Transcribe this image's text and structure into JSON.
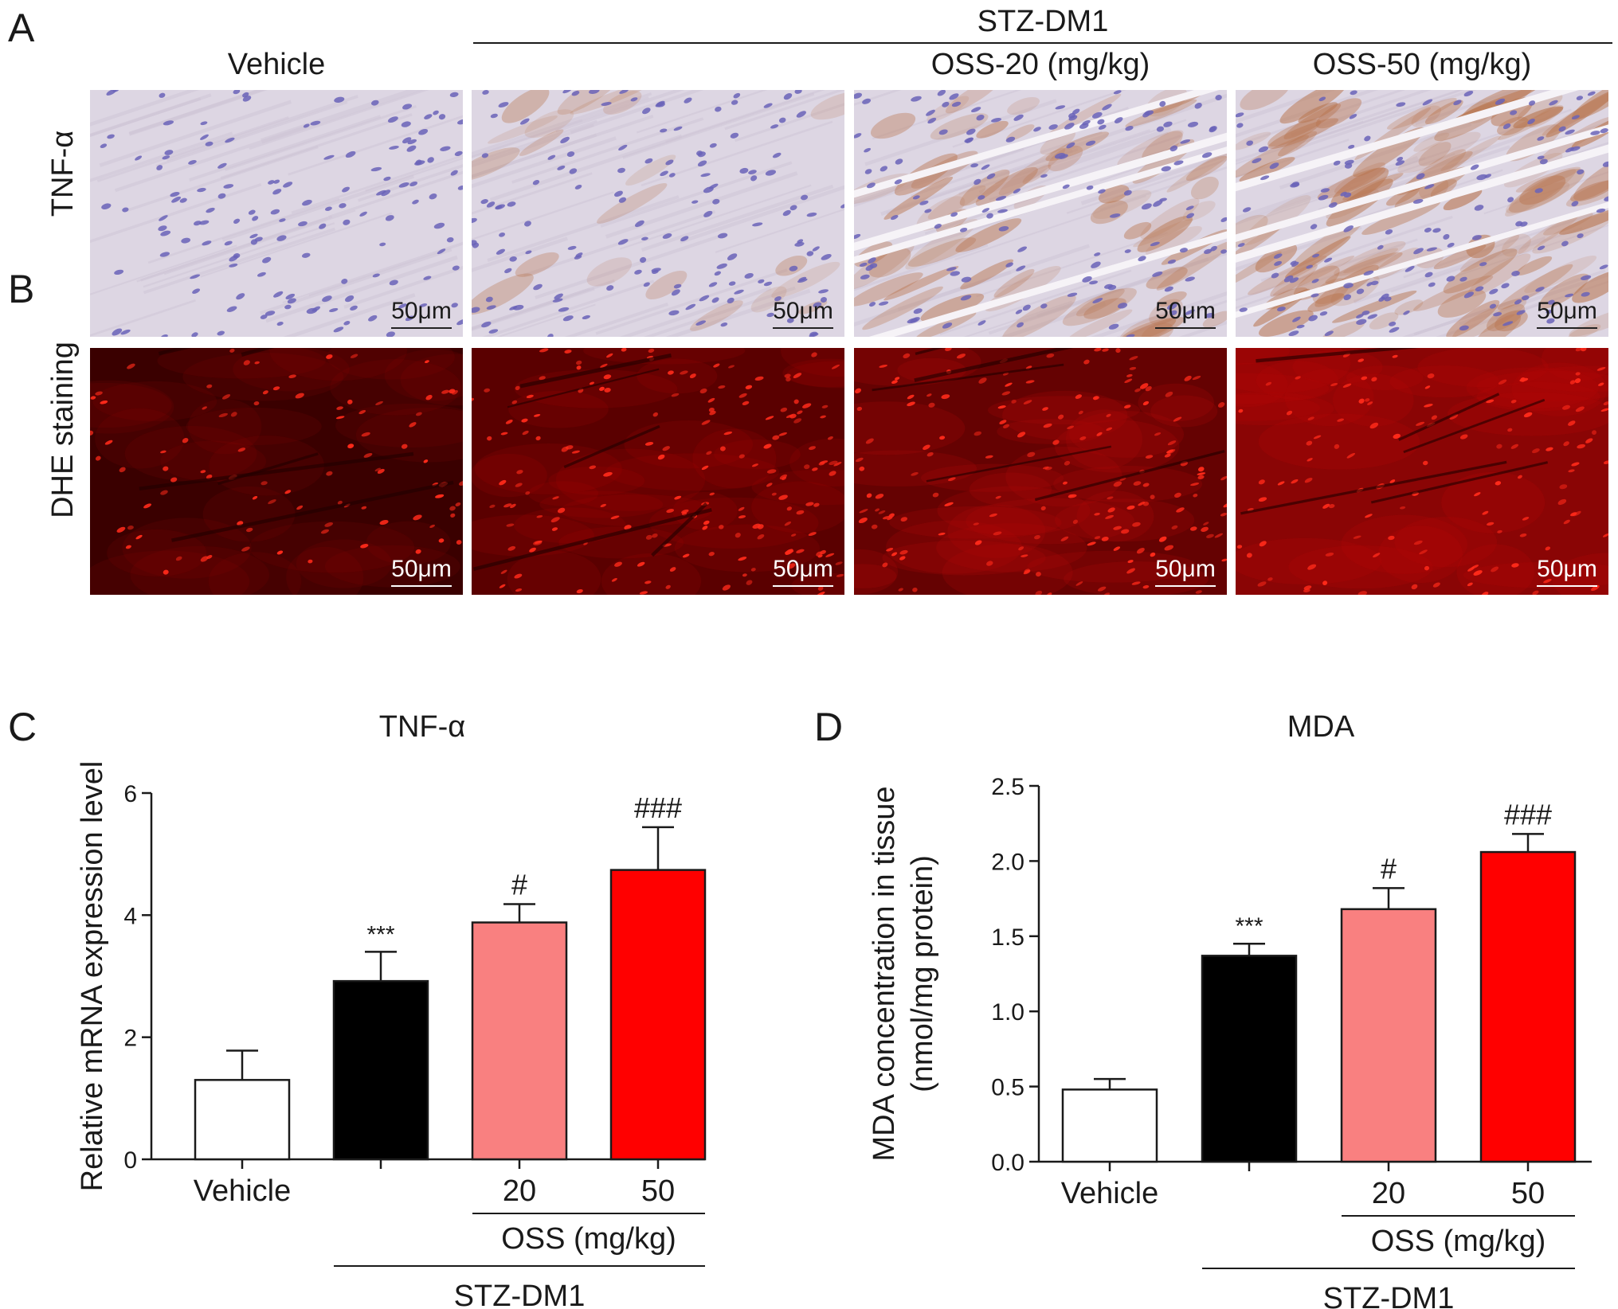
{
  "figure": {
    "panel_a_letter": "A",
    "panel_b_letter": "B",
    "panel_c_letter": "C",
    "panel_d_letter": "D",
    "group_header": "STZ-DM1",
    "columns": [
      "Vehicle",
      "OSS-20 (mg/kg)",
      "OSS-50 (mg/kg)"
    ],
    "rows": [
      "TNF-α",
      "DHE staining"
    ],
    "scale_bar_label": "50μm"
  },
  "colors": {
    "vehicle": "#ffffff",
    "stz": "#000000",
    "oss20": "#f98080",
    "oss50": "#ff0000",
    "ihc_bg": "#ddd6e3",
    "ihc_brown": "#b8744d",
    "nuclei": "#6a63b8",
    "dhe_bg": "#5a0000",
    "dhe_spot": "#ff2a1a"
  },
  "chart_data": [
    {
      "type": "bar",
      "title": "TNF-α",
      "ylabel": "Relative mRNA expression level",
      "xlabel": "",
      "ylim": [
        0,
        6
      ],
      "yticks": [
        0,
        2,
        4,
        6
      ],
      "categories": [
        "Vehicle",
        "",
        "20",
        "50"
      ],
      "values": [
        1.3,
        2.92,
        3.88,
        4.74
      ],
      "errors": [
        0.48,
        0.48,
        0.3,
        0.7
      ],
      "annotations": [
        "",
        "***",
        "#",
        "###"
      ],
      "group_labels": {
        "oss": "OSS (mg/kg)",
        "stz": "STZ-DM1"
      }
    },
    {
      "type": "bar",
      "title": "MDA",
      "ylabel": "MDA concentration in tissue",
      "ylabel2": "(nmol/mg protein)",
      "xlabel": "",
      "ylim": [
        0,
        2.5
      ],
      "yticks": [
        "0.0",
        "0.5",
        "1.0",
        "1.5",
        "2.0",
        "2.5"
      ],
      "categories": [
        "Vehicle",
        "",
        "20",
        "50"
      ],
      "values": [
        0.48,
        1.37,
        1.68,
        2.06
      ],
      "errors": [
        0.07,
        0.08,
        0.14,
        0.12
      ],
      "annotations": [
        "",
        "***",
        "#",
        "###"
      ],
      "group_labels": {
        "oss": "OSS (mg/kg)",
        "stz": "STZ-DM1"
      }
    }
  ]
}
